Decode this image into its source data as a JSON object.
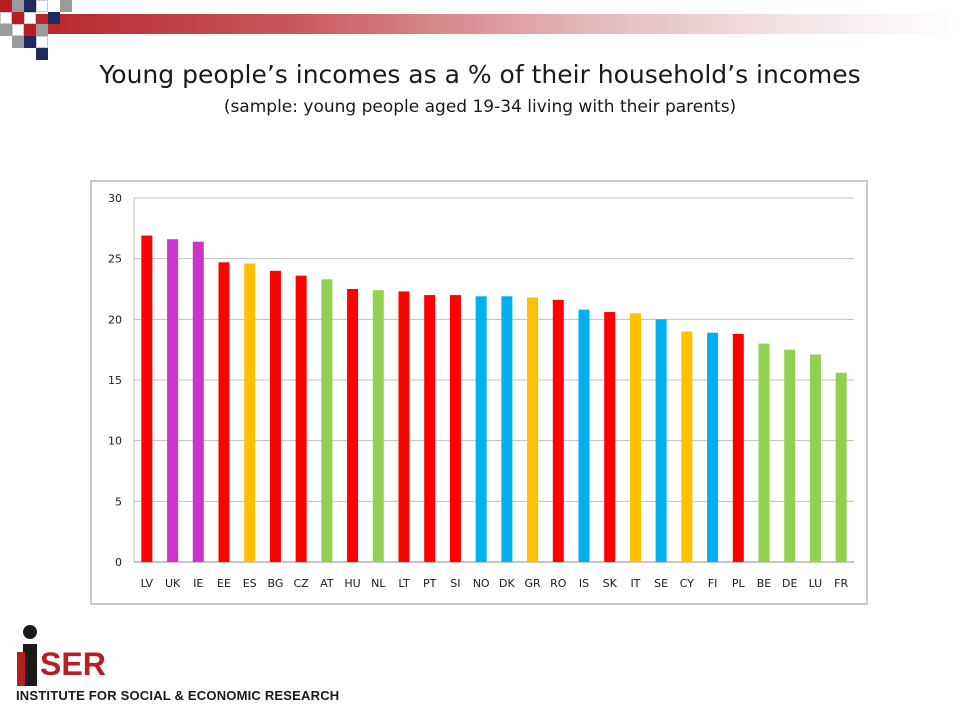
{
  "title": "Young people’s incomes as a % of their household’s incomes",
  "subtitle": "(sample: young people aged 19-34 living with their parents)",
  "logo": {
    "wordmark": "iSER",
    "text": "INSTITUTE FOR SOCIAL & ECONOMIC RESEARCH"
  },
  "colors": {
    "red": "#ff0000",
    "magenta": "#cc33cc",
    "yellow": "#ffc000",
    "green": "#92d050",
    "blue": "#00b0f0",
    "brand": "#b51f24"
  },
  "chart_data": {
    "type": "bar",
    "title": "",
    "xlabel": "",
    "ylabel": "",
    "ylim": [
      0,
      30
    ],
    "yticks": [
      0,
      5,
      10,
      15,
      20,
      25,
      30
    ],
    "grid": true,
    "legend": "none",
    "categories": [
      "LV",
      "UK",
      "IE",
      "EE",
      "ES",
      "BG",
      "CZ",
      "AT",
      "HU",
      "NL",
      "LT",
      "PT",
      "SI",
      "NO",
      "DK",
      "GR",
      "RO",
      "IS",
      "SK",
      "IT",
      "SE",
      "CY",
      "FI",
      "PL",
      "BE",
      "DE",
      "LU",
      "FR"
    ],
    "values": [
      26.9,
      26.6,
      26.4,
      24.7,
      24.6,
      24.0,
      23.6,
      23.3,
      22.5,
      22.4,
      22.3,
      22.0,
      22.0,
      21.9,
      21.9,
      21.8,
      21.6,
      20.8,
      20.6,
      20.5,
      20.0,
      19.0,
      18.9,
      18.8,
      18.0,
      17.5,
      17.1,
      15.6
    ],
    "bar_colors": [
      "#ff0000",
      "#cc33cc",
      "#cc33cc",
      "#ff0000",
      "#ffc000",
      "#ff0000",
      "#ff0000",
      "#92d050",
      "#ff0000",
      "#92d050",
      "#ff0000",
      "#ff0000",
      "#ff0000",
      "#00b0f0",
      "#00b0f0",
      "#ffc000",
      "#ff0000",
      "#00b0f0",
      "#ff0000",
      "#ffc000",
      "#00b0f0",
      "#ffc000",
      "#00b0f0",
      "#ff0000",
      "#92d050",
      "#92d050",
      "#92d050",
      "#92d050"
    ]
  }
}
